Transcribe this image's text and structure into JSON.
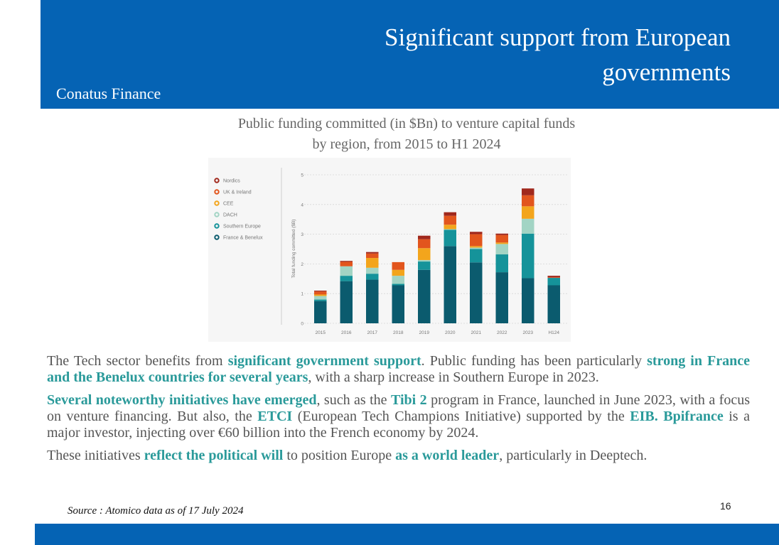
{
  "slide": {
    "title": "Significant support from European governments",
    "company": "Conatus Finance",
    "chart_caption_line1": "Public funding committed (in $Bn) to venture capital funds",
    "chart_caption_line2": "by region, from 2015 to H1 2024",
    "paragraph1": [
      {
        "text": "The Tech sector benefits from ",
        "highlight": false
      },
      {
        "text": "significant government support",
        "highlight": true
      },
      {
        "text": ". Public funding has been particularly ",
        "highlight": false
      },
      {
        "text": "strong in France and the Benelux countries for several years",
        "highlight": true
      },
      {
        "text": ", with a sharp increase in Southern Europe in 2023.",
        "highlight": false
      }
    ],
    "paragraph2": [
      {
        "text": "Several noteworthy initiatives have emerged",
        "highlight": true
      },
      {
        "text": ", such as the ",
        "highlight": false
      },
      {
        "text": "Tibi 2",
        "highlight": true
      },
      {
        "text": " program in France, launched in June 2023, with a focus on venture financing. But also, the ",
        "highlight": false
      },
      {
        "text": "ETCI",
        "highlight": true
      },
      {
        "text": " (European Tech Champions Initiative) supported by the ",
        "highlight": false
      },
      {
        "text": "EIB. Bpifrance",
        "highlight": true
      },
      {
        "text": " is a major investor, injecting over €60 billion into the French economy by 2024.",
        "highlight": false
      }
    ],
    "paragraph3": [
      {
        "text": "These initiatives ",
        "highlight": false
      },
      {
        "text": "reflect the political will",
        "highlight": true
      },
      {
        "text": " to position Europe ",
        "highlight": false
      },
      {
        "text": "as a world leader",
        "highlight": true
      },
      {
        "text": ", particularly in Deeptech.",
        "highlight": false
      }
    ],
    "source": "Source : Atomico data as of 17 July 2024",
    "page_number": "16"
  },
  "colors": {
    "header_blue": "#0563b4",
    "highlight_teal": "#2a9a9a"
  },
  "chart_data": {
    "type": "bar",
    "stacked": true,
    "ylabel": "Total funding committed ($B)",
    "ylim": [
      0,
      5
    ],
    "yticks": [
      0,
      1,
      2,
      3,
      4,
      5
    ],
    "grid": true,
    "legend_position": "top-left",
    "categories": [
      "2015",
      "2016",
      "2017",
      "2018",
      "2019",
      "2020",
      "2021",
      "2022",
      "2023",
      "H124"
    ],
    "series": [
      {
        "name": "France & Benelux",
        "color": "#0b5b6e",
        "values": [
          0.75,
          1.42,
          1.47,
          1.28,
          1.8,
          2.6,
          2.05,
          1.72,
          1.52,
          1.28
        ]
      },
      {
        "name": "Southern Europe",
        "color": "#15939a",
        "values": [
          0.05,
          0.18,
          0.2,
          0.05,
          0.28,
          0.55,
          0.45,
          0.6,
          1.5,
          0.25
        ]
      },
      {
        "name": "DACH",
        "color": "#a2d4c4",
        "values": [
          0.12,
          0.32,
          0.2,
          0.27,
          0.05,
          0.02,
          0.05,
          0.35,
          0.5,
          0.0
        ]
      },
      {
        "name": "CEE",
        "color": "#f3a51c",
        "values": [
          0.05,
          0.0,
          0.33,
          0.2,
          0.4,
          0.15,
          0.05,
          0.05,
          0.42,
          0.0
        ]
      },
      {
        "name": "UK & Ireland",
        "color": "#e2551d",
        "values": [
          0.1,
          0.15,
          0.15,
          0.26,
          0.3,
          0.3,
          0.4,
          0.25,
          0.37,
          0.02
        ]
      },
      {
        "name": "Nordics",
        "color": "#a0281c",
        "values": [
          0.03,
          0.03,
          0.05,
          0.0,
          0.12,
          0.12,
          0.08,
          0.05,
          0.23,
          0.05
        ]
      }
    ]
  }
}
